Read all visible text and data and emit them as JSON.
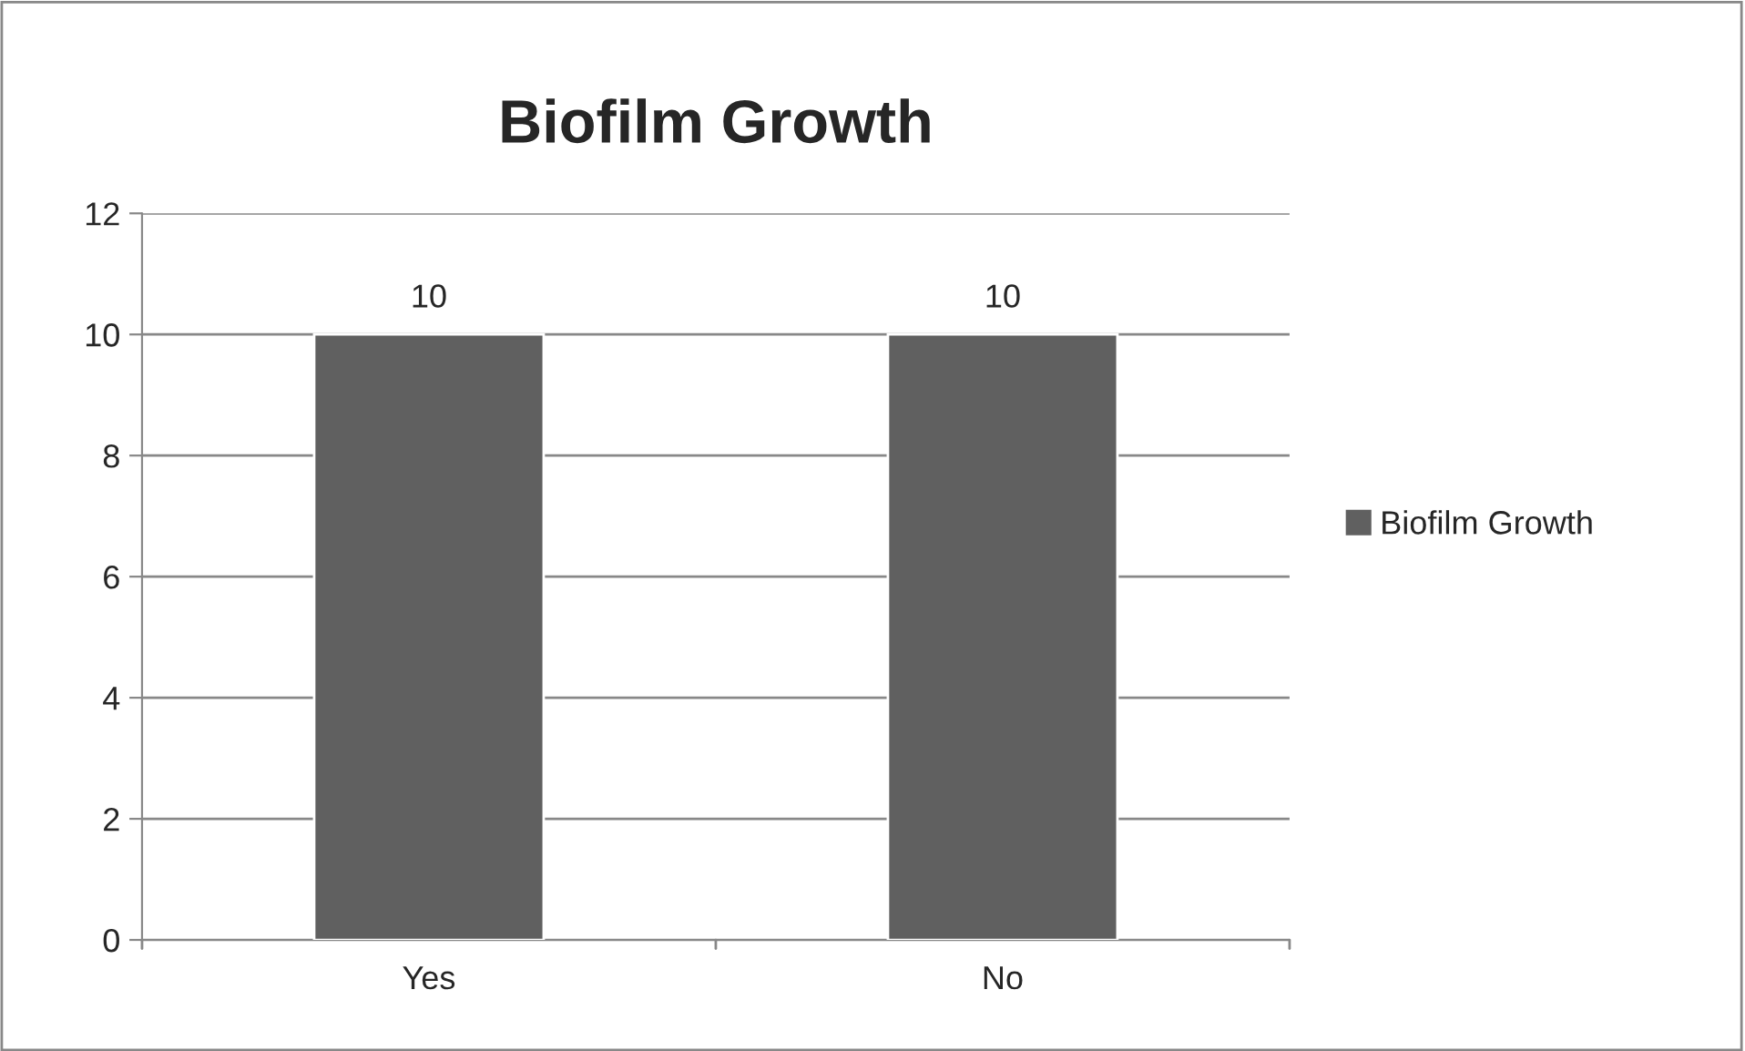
{
  "chart_data": {
    "type": "bar",
    "title": "Biofilm Growth",
    "categories": [
      "Yes",
      "No"
    ],
    "series": [
      {
        "name": "Biofilm Growth",
        "color": "#606060",
        "values": [
          10,
          10
        ]
      }
    ],
    "ylim": [
      0,
      12
    ],
    "yticks": [
      0,
      2,
      4,
      6,
      8,
      10,
      12
    ],
    "grid": "y",
    "legend": "right",
    "data_labels": true
  }
}
